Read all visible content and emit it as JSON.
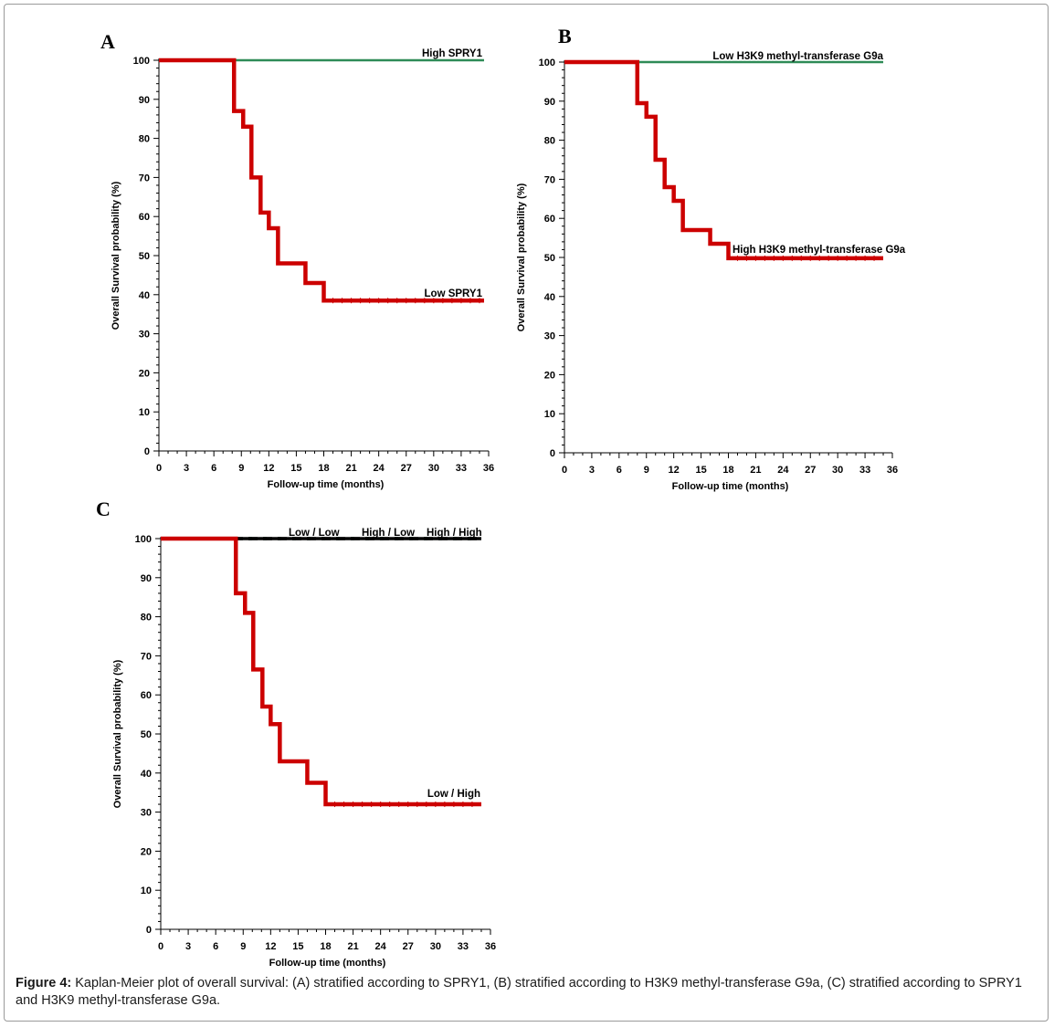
{
  "panels": [
    {
      "letter": "A"
    },
    {
      "letter": "B"
    },
    {
      "letter": "C"
    }
  ],
  "caption": {
    "label": "Figure 4:",
    "text": " Kaplan-Meier plot of overall survival: (A) stratified according to SPRY1, (B) stratified according to H3K9 methyl-transferase G9a, (C) stratified according to SPRY1 and H3K9 methyl-transferase G9a."
  },
  "chart_data": [
    {
      "type": "line",
      "subtype": "kaplan-meier",
      "title": "",
      "xlabel": "Follow-up time (months)",
      "ylabel": "Overall Survival probability (%)",
      "xlim": [
        0,
        36
      ],
      "ylim": [
        0,
        100
      ],
      "xticks": [
        0,
        3,
        6,
        9,
        12,
        15,
        18,
        21,
        24,
        27,
        30,
        33,
        36
      ],
      "yticks": [
        0,
        10,
        20,
        30,
        40,
        50,
        60,
        70,
        80,
        90,
        100
      ],
      "grid": false,
      "series": [
        {
          "name": "High SPRY1",
          "color": "#2e8b57",
          "style": "solid",
          "x": [
            0,
            35.5
          ],
          "y": [
            100,
            100
          ]
        },
        {
          "name": "Low SPRY1",
          "color": "#cc0000",
          "style": "solid",
          "x": [
            0,
            8.2,
            9.2,
            10.1,
            11.1,
            12.0,
            13.0,
            16.0,
            18.0,
            35.5
          ],
          "y": [
            100,
            87,
            83,
            70,
            61,
            57,
            48,
            43,
            38.5,
            38.5
          ]
        }
      ]
    },
    {
      "type": "line",
      "subtype": "kaplan-meier",
      "title": "",
      "xlabel": "Follow-up time (months)",
      "ylabel": "Overall Survival probability (%)",
      "xlim": [
        0,
        36
      ],
      "ylim": [
        0,
        100
      ],
      "xticks": [
        0,
        3,
        6,
        9,
        12,
        15,
        18,
        21,
        24,
        27,
        30,
        33,
        36
      ],
      "yticks": [
        0,
        10,
        20,
        30,
        40,
        50,
        60,
        70,
        80,
        90,
        100
      ],
      "grid": false,
      "series": [
        {
          "name": "Low H3K9 methyl-transferase G9a",
          "color": "#2e8b57",
          "style": "solid",
          "x": [
            0,
            35
          ],
          "y": [
            100,
            100
          ]
        },
        {
          "name": "High H3K9 methyl-transferase G9a",
          "color": "#cc0000",
          "style": "solid",
          "x": [
            0,
            8.0,
            9.0,
            10.0,
            11.0,
            12.0,
            13.0,
            16.0,
            18.0,
            35
          ],
          "y": [
            100,
            89.5,
            86,
            75,
            68,
            64.5,
            57,
            53.5,
            49.8,
            49.8
          ]
        }
      ]
    },
    {
      "type": "line",
      "subtype": "kaplan-meier",
      "title": "",
      "xlabel": "Follow-up time (months)",
      "ylabel": "Overall Survival probability (%)",
      "xlim": [
        0,
        36
      ],
      "ylim": [
        0,
        100
      ],
      "xticks": [
        0,
        3,
        6,
        9,
        12,
        15,
        18,
        21,
        24,
        27,
        30,
        33,
        36
      ],
      "yticks": [
        0,
        10,
        20,
        30,
        40,
        50,
        60,
        70,
        80,
        90,
        100
      ],
      "grid": false,
      "series": [
        {
          "name": "Low / Low",
          "color": "#2e8b57",
          "style": "dash",
          "x": [
            0,
            35
          ],
          "y": [
            100,
            100
          ]
        },
        {
          "name": "High / Low",
          "color": "#000000",
          "style": "dash",
          "x": [
            0,
            35
          ],
          "y": [
            100,
            100
          ]
        },
        {
          "name": "High / High",
          "color": "#000000",
          "style": "solid",
          "x": [
            0,
            35
          ],
          "y": [
            100,
            100
          ]
        },
        {
          "name": "Low / High",
          "color": "#cc0000",
          "style": "solid",
          "x": [
            0,
            8.2,
            9.2,
            10.1,
            11.1,
            12.0,
            13.0,
            16.0,
            18.0,
            35
          ],
          "y": [
            100,
            86,
            81,
            66.5,
            57,
            52.5,
            43,
            37.5,
            32,
            32
          ]
        }
      ]
    }
  ]
}
